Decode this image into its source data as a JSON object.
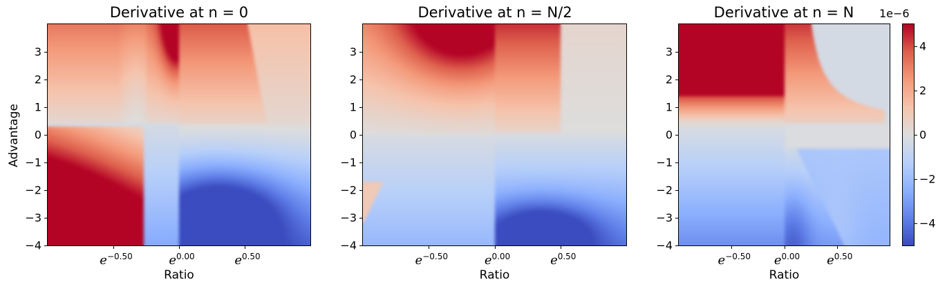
{
  "chart_data": [
    {
      "type": "heatmap",
      "title": "Derivative at n = 0",
      "xlabel": "Ratio",
      "ylabel": "Advantage",
      "x_scale": "log (natural), ticks shown as e^k",
      "xlim_log": [
        -1.0,
        1.0
      ],
      "ylim": [
        -4,
        4
      ],
      "xticks": [
        "e^{-0.50}",
        "e^{0.00}",
        "e^{0.50}"
      ],
      "xtick_values_log": [
        -0.5,
        0.0,
        0.5
      ],
      "yticks": [
        -4,
        -3,
        -2,
        -1,
        0,
        1,
        2,
        3
      ],
      "colormap": "coolwarm",
      "clim": [
        -5e-06,
        5e-06
      ],
      "description": "Positive (red) for advantage > ~0.5 across ratios with a vertical dark-red streak just left of ratio=1; negative (blue) for advantage < 0 and ratio >= ~e^-0.25 with deepest blue near ratio e^0.3, advantage -3; strong red for small ratio and negative advantage (bottom-left)."
    },
    {
      "type": "heatmap",
      "title": "Derivative at n = N/2",
      "xlabel": "Ratio",
      "ylabel": "",
      "x_scale": "log (natural), ticks shown as e^k",
      "xlim_log": [
        -1.0,
        1.0
      ],
      "ylim": [
        -4,
        4
      ],
      "xticks": [
        "e^{-0.50}",
        "e^{0.00}",
        "e^{0.50}"
      ],
      "xtick_values_log": [
        -0.5,
        0.0,
        0.5
      ],
      "yticks": [
        -4,
        -3,
        -2,
        -1,
        0,
        1,
        2,
        3
      ],
      "colormap": "coolwarm",
      "clim": [
        -5e-06,
        5e-06
      ],
      "description": "Saturated red for ratio in [e^-0.6, 1], advantage > 2.5; red fading to neutral for ratio > e^0.45; blue below advantage 0 with deepest blue near ratio e^0.3, advantage -3.5; light red in bottom-left corner."
    },
    {
      "type": "heatmap",
      "title": "Derivative at n = N",
      "xlabel": "Ratio",
      "ylabel": "",
      "x_scale": "log (natural), ticks shown as e^k",
      "xlim_log": [
        -1.0,
        1.0
      ],
      "ylim": [
        -4,
        4
      ],
      "xticks": [
        "e^{-0.50}",
        "e^{0.00}",
        "e^{0.50}"
      ],
      "xtick_values_log": [
        -0.5,
        0.0,
        0.5
      ],
      "yticks": [
        -4,
        -3,
        -2,
        -1,
        0,
        1,
        2,
        3
      ],
      "colormap": "coolwarm",
      "clim": [
        -5e-06,
        5e-06
      ],
      "description": "Saturated red for ratio < 1 and advantage > 1.5; red/orange for ratio between 1 and e^0.3 at positive advantage; light blue neutral region at upper right; blue for negative advantage with deepest blue just right of ratio=1 near advantage -3.5; light blue band curving down to ratio e^0.55 at bottom."
    }
  ],
  "colorbar": {
    "offset_label": "1e−6",
    "ticks": [
      "4",
      "2",
      "0",
      "−2",
      "−4"
    ],
    "tick_values": [
      4,
      2,
      0,
      -2,
      -4
    ],
    "range": [
      -5,
      5
    ]
  },
  "panels": [
    {
      "title": "Derivative at n = 0",
      "xlabel": "Ratio",
      "ylabel": "Advantage"
    },
    {
      "title": "Derivative at n = N/2",
      "xlabel": "Ratio",
      "ylabel": ""
    },
    {
      "title": "Derivative at n = N",
      "xlabel": "Ratio",
      "ylabel": ""
    }
  ],
  "yticks": [
    "3",
    "2",
    "1",
    "0",
    "−1",
    "−2",
    "−3",
    "−4"
  ],
  "xticks": [
    {
      "base": "e",
      "exp": "−0.50"
    },
    {
      "base": "e",
      "exp": "0.00"
    },
    {
      "base": "e",
      "exp": "0.50"
    }
  ]
}
